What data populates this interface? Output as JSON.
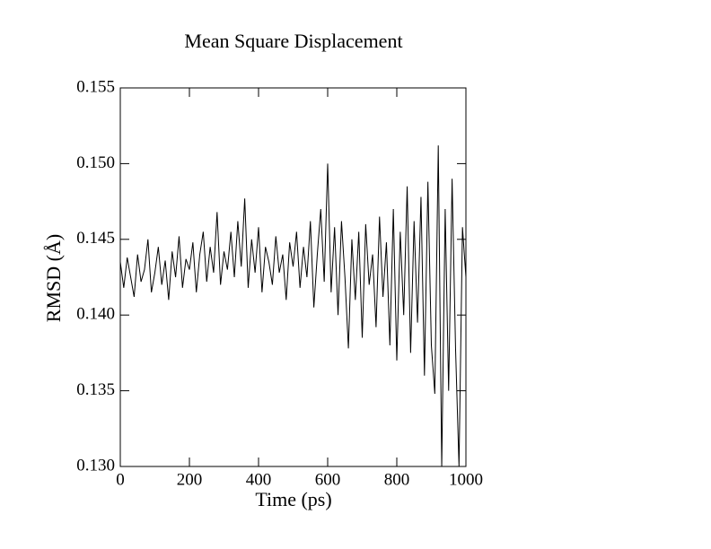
{
  "chart_data": {
    "type": "line",
    "title": "Mean Square Displacement",
    "x_label": "Time (ps)",
    "y_label": "RMSD (Å)",
    "x": [
      0,
      10,
      20,
      30,
      40,
      50,
      60,
      70,
      80,
      90,
      100,
      110,
      120,
      130,
      140,
      150,
      160,
      170,
      180,
      190,
      200,
      210,
      220,
      230,
      240,
      250,
      260,
      270,
      280,
      290,
      300,
      310,
      320,
      330,
      340,
      350,
      360,
      370,
      380,
      390,
      400,
      410,
      420,
      430,
      440,
      450,
      460,
      470,
      480,
      490,
      500,
      510,
      520,
      530,
      540,
      550,
      560,
      570,
      580,
      590,
      600,
      610,
      620,
      630,
      640,
      650,
      660,
      670,
      680,
      690,
      700,
      710,
      720,
      730,
      740,
      750,
      760,
      770,
      780,
      790,
      800,
      810,
      820,
      830,
      840,
      850,
      860,
      870,
      880,
      890,
      900,
      910,
      920,
      930,
      940,
      950,
      960,
      970,
      980,
      990,
      1000
    ],
    "series": [
      {
        "color": "#000000",
        "values": [
          0.1435,
          0.1418,
          0.1438,
          0.1425,
          0.1412,
          0.144,
          0.1422,
          0.143,
          0.145,
          0.1415,
          0.1428,
          0.1445,
          0.142,
          0.1436,
          0.141,
          0.1442,
          0.1425,
          0.1452,
          0.1418,
          0.1437,
          0.143,
          0.1448,
          0.1415,
          0.144,
          0.1455,
          0.1422,
          0.1445,
          0.1428,
          0.1468,
          0.142,
          0.1442,
          0.143,
          0.1455,
          0.1425,
          0.1462,
          0.1432,
          0.1477,
          0.1418,
          0.145,
          0.1428,
          0.1458,
          0.1415,
          0.1445,
          0.1435,
          0.142,
          0.1452,
          0.1428,
          0.144,
          0.141,
          0.1448,
          0.1432,
          0.1455,
          0.1418,
          0.1445,
          0.1425,
          0.1462,
          0.1405,
          0.144,
          0.147,
          0.1422,
          0.15,
          0.1415,
          0.1458,
          0.14,
          0.1462,
          0.1425,
          0.1378,
          0.145,
          0.141,
          0.1455,
          0.1385,
          0.146,
          0.142,
          0.144,
          0.1392,
          0.1465,
          0.1412,
          0.1448,
          0.138,
          0.147,
          0.137,
          0.1455,
          0.14,
          0.1485,
          0.1375,
          0.1462,
          0.1395,
          0.1478,
          0.136,
          0.1488,
          0.138,
          0.1348,
          0.1512,
          0.13,
          0.147,
          0.135,
          0.149,
          0.1378,
          0.13,
          0.1458,
          0.1425
        ]
      }
    ],
    "xlim": [
      0,
      1000
    ],
    "xticks": [
      0,
      200,
      400,
      600,
      800,
      1000
    ],
    "ylim": [
      0.13,
      0.155
    ],
    "yticks": [
      {
        "value": 0.13,
        "label": "0.130"
      },
      0.135,
      {
        "value": 0.14,
        "label": "0.140"
      },
      0.145,
      {
        "value": 0.15,
        "label": "0.150"
      },
      0.155
    ]
  }
}
